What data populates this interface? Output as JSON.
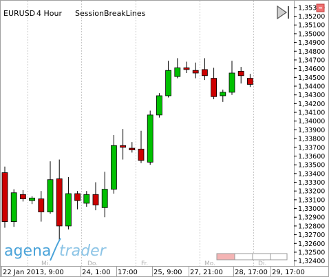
{
  "header": {
    "symbol": "EURUSD",
    "timeframe": "4 Hour",
    "indicator": "SessionBreakLines"
  },
  "logo": {
    "part1": "agena",
    "part2": "trader"
  },
  "colors": {
    "up": "#00c000",
    "down": "#cc0000",
    "session_line": "#c8c8c8",
    "logo": "#4aa3d9",
    "pager_active": "#f4b4b4"
  },
  "icons": {
    "play": "play-triangle-icon",
    "collapse": "collapse-icon"
  },
  "session_labels": [
    "Mi.",
    "Do.",
    "Fr.",
    "Mo.",
    "Di."
  ],
  "date_axis": [
    "22 Jan 2013, 9:00",
    "24, 1:00",
    "17:00",
    "25, 9:00",
    "27, 21:00",
    "28, 17:00",
    "29, 17:00"
  ],
  "chart_data": {
    "type": "candlestick",
    "symbol": "EURUSD",
    "timeframe": "4 Hour",
    "ylim": [
      1.3235,
      1.3537
    ],
    "y_ticks": [
      "1,35300",
      "1,35200",
      "1,35100",
      "1,35000",
      "1,34900",
      "1,34800",
      "1,34700",
      "1,34600",
      "1,34500",
      "1,34400",
      "1,34300",
      "1,34200",
      "1,34100",
      "1,34000",
      "1,33900",
      "1,33800",
      "1,33700",
      "1,33600",
      "1,33500",
      "1,33400",
      "1,33300",
      "1,33200",
      "1,33100",
      "1,33000",
      "1,32900",
      "1,32800",
      "1,32700",
      "1,32600",
      "1,32500",
      "1,32400"
    ],
    "candles": [
      {
        "open": 1.3341,
        "high": 1.3348,
        "low": 1.3278,
        "close": 1.3285
      },
      {
        "open": 1.3285,
        "high": 1.3322,
        "low": 1.3279,
        "close": 1.3318
      },
      {
        "open": 1.3316,
        "high": 1.3321,
        "low": 1.3308,
        "close": 1.3311
      },
      {
        "open": 1.3309,
        "high": 1.3314,
        "low": 1.3305,
        "close": 1.3312
      },
      {
        "open": 1.3311,
        "high": 1.332,
        "low": 1.3285,
        "close": 1.3296
      },
      {
        "open": 1.3296,
        "high": 1.3354,
        "low": 1.3294,
        "close": 1.3333
      },
      {
        "open": 1.3334,
        "high": 1.3356,
        "low": 1.3264,
        "close": 1.328
      },
      {
        "open": 1.328,
        "high": 1.3336,
        "low": 1.3276,
        "close": 1.3317
      },
      {
        "open": 1.3317,
        "high": 1.332,
        "low": 1.3299,
        "close": 1.3309
      },
      {
        "open": 1.3306,
        "high": 1.332,
        "low": 1.3302,
        "close": 1.3316
      },
      {
        "open": 1.3316,
        "high": 1.333,
        "low": 1.3298,
        "close": 1.3304
      },
      {
        "open": 1.3301,
        "high": 1.3342,
        "low": 1.329,
        "close": 1.3322
      },
      {
        "open": 1.3322,
        "high": 1.3384,
        "low": 1.3317,
        "close": 1.3372
      },
      {
        "open": 1.3372,
        "high": 1.3391,
        "low": 1.3356,
        "close": 1.337
      },
      {
        "open": 1.3369,
        "high": 1.3376,
        "low": 1.3364,
        "close": 1.3367
      },
      {
        "open": 1.3368,
        "high": 1.3389,
        "low": 1.3352,
        "close": 1.3355
      },
      {
        "open": 1.3353,
        "high": 1.3412,
        "low": 1.335,
        "close": 1.3407
      },
      {
        "open": 1.3407,
        "high": 1.3432,
        "low": 1.3404,
        "close": 1.3429
      },
      {
        "open": 1.3429,
        "high": 1.3469,
        "low": 1.3427,
        "close": 1.3458
      },
      {
        "open": 1.3451,
        "high": 1.3472,
        "low": 1.3449,
        "close": 1.3461
      },
      {
        "open": 1.3461,
        "high": 1.3468,
        "low": 1.3455,
        "close": 1.3459
      },
      {
        "open": 1.3458,
        "high": 1.3467,
        "low": 1.3449,
        "close": 1.3455
      },
      {
        "open": 1.3459,
        "high": 1.3472,
        "low": 1.3447,
        "close": 1.3452
      },
      {
        "open": 1.3449,
        "high": 1.3461,
        "low": 1.3425,
        "close": 1.3428
      },
      {
        "open": 1.3429,
        "high": 1.3436,
        "low": 1.3422,
        "close": 1.3433
      },
      {
        "open": 1.3433,
        "high": 1.3469,
        "low": 1.343,
        "close": 1.3455
      },
      {
        "open": 1.3457,
        "high": 1.3462,
        "low": 1.3443,
        "close": 1.3452
      },
      {
        "open": 1.3449,
        "high": 1.3454,
        "low": 1.3439,
        "close": 1.3442
      }
    ]
  }
}
